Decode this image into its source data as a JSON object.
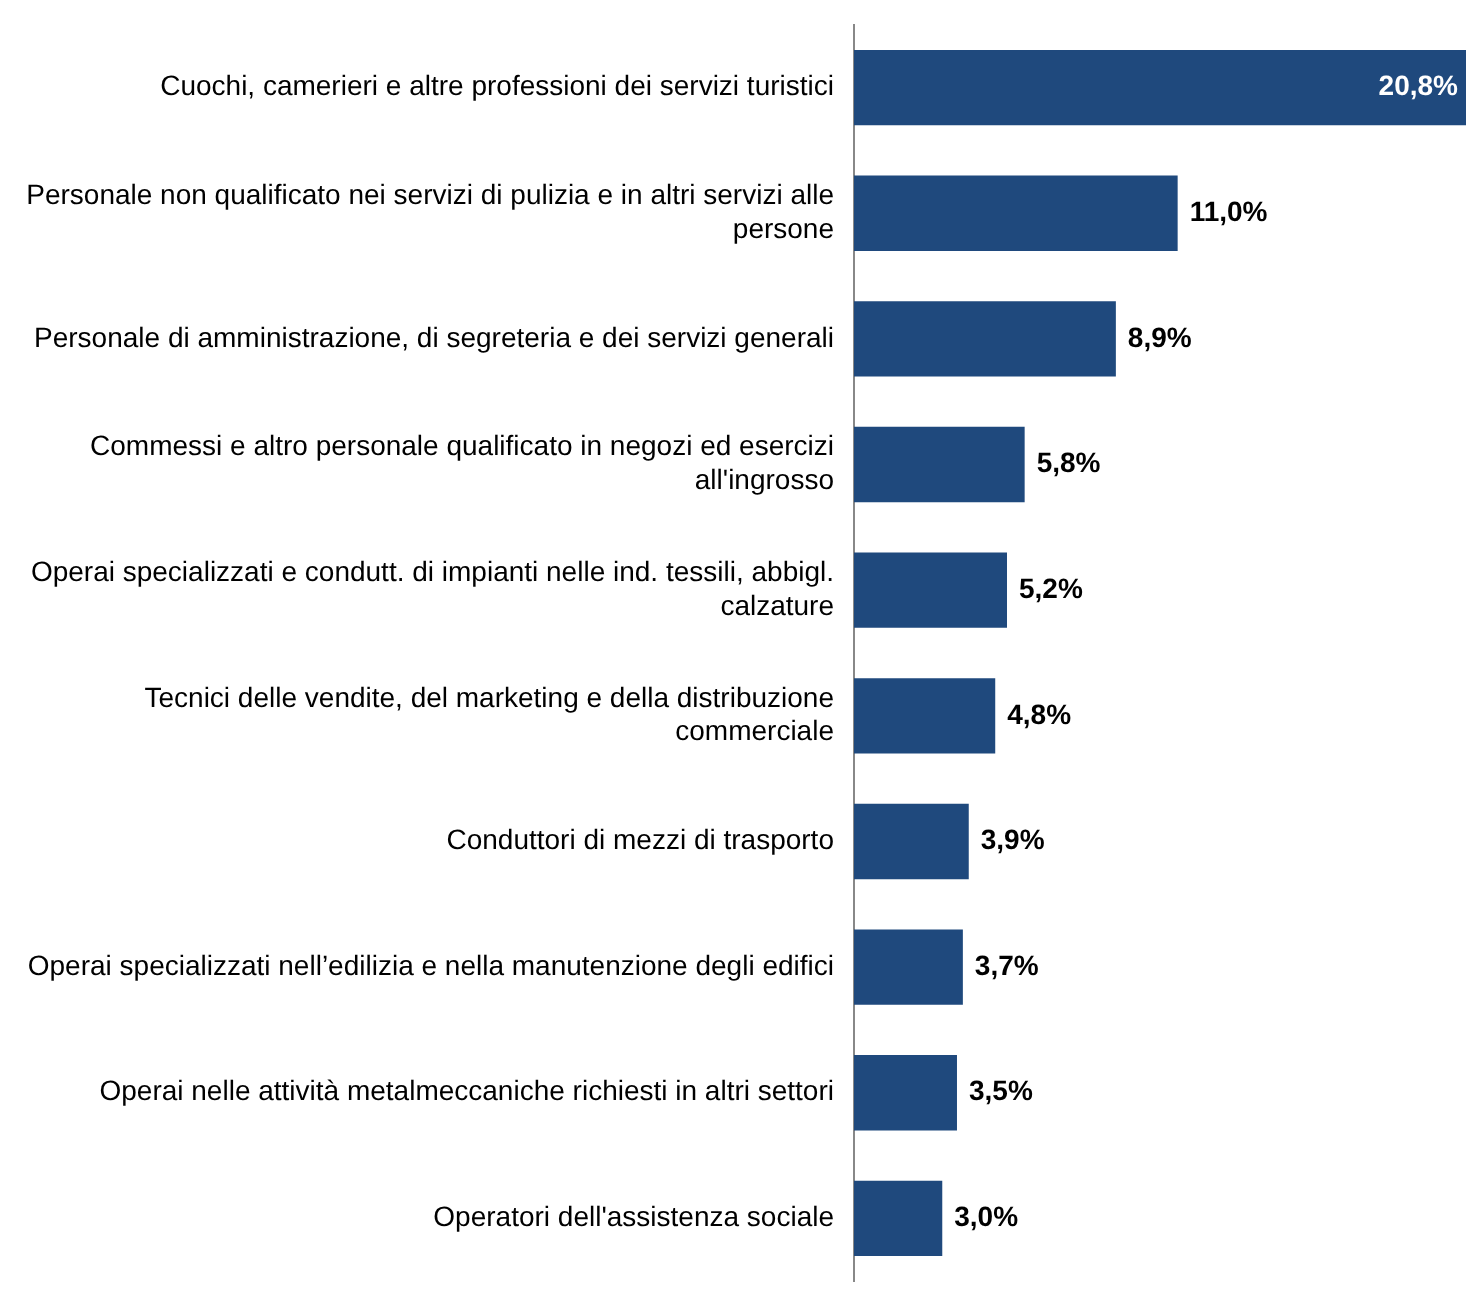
{
  "chart_data": {
    "type": "bar",
    "orientation": "horizontal",
    "categories": [
      "Cuochi, camerieri e altre professioni dei servizi turistici",
      "Personale non qualificato nei servizi di pulizia e in altri servizi alle persone",
      "Personale di amministrazione, di segreteria e dei servizi generali",
      "Commessi e altro personale qualificato in negozi ed esercizi all'ingrosso",
      "Operai specializzati e condutt. di impianti nelle ind. tessili, abbigl. calzature",
      "Tecnici delle vendite, del marketing e della distribuzione commerciale",
      "Conduttori di mezzi di trasporto",
      "Operai specializzati nell’edilizia e nella manutenzione degli edifici",
      "Operai nelle attività metalmeccaniche richiesti in altri settori",
      "Operatori dell'assistenza sociale"
    ],
    "values": [
      20.8,
      11.0,
      8.9,
      5.8,
      5.2,
      4.8,
      3.9,
      3.7,
      3.5,
      3.0
    ],
    "value_labels": [
      "20,8%",
      "11,0%",
      "8,9%",
      "5,8%",
      "5,2%",
      "4,8%",
      "3,9%",
      "3,7%",
      "3,5%",
      "3,0%"
    ],
    "color": "#1f497d",
    "legend": false,
    "tick_labels": "y"
  }
}
